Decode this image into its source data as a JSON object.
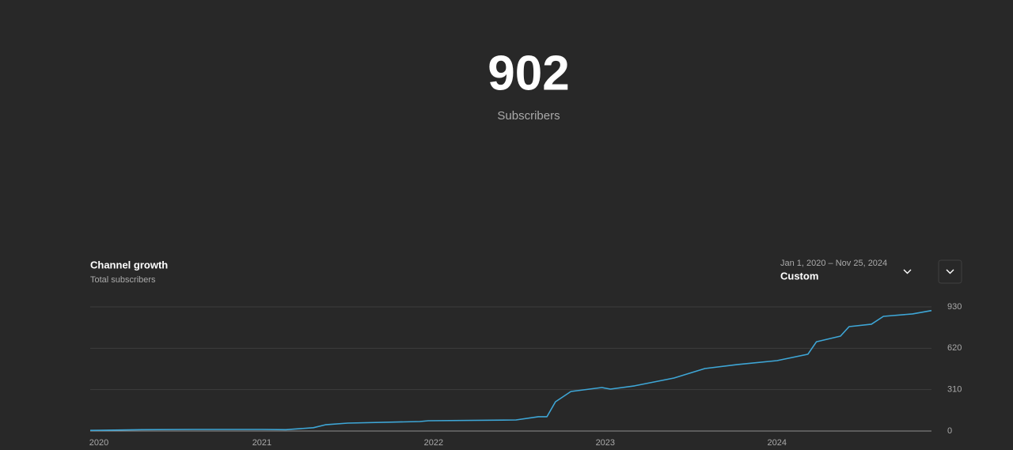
{
  "header": {
    "value": "902",
    "label": "Subscribers"
  },
  "card": {
    "title": "Channel growth",
    "subtitle": "Total subscribers",
    "date_range": "Jan 1, 2020 – Nov 25, 2024",
    "range_name": "Custom"
  },
  "chart_data": {
    "type": "line",
    "color": "#3ea6d6",
    "grid": true,
    "x": [
      2020.0,
      2020.3,
      2020.6,
      2021.0,
      2021.14,
      2021.3,
      2021.37,
      2021.5,
      2021.92,
      2021.97,
      2022.48,
      2022.61,
      2022.66,
      2022.71,
      2022.8,
      2022.98,
      2023.03,
      2023.17,
      2023.4,
      2023.58,
      2023.77,
      2024.0,
      2024.18,
      2024.23,
      2024.37,
      2024.42,
      2024.55,
      2024.62,
      2024.79,
      2024.9
    ],
    "values": [
      5,
      10,
      12,
      12,
      10,
      25,
      47,
      59,
      71,
      77,
      83,
      107,
      107,
      219,
      296,
      326,
      314,
      338,
      397,
      468,
      498,
      527,
      575,
      669,
      711,
      782,
      800,
      859,
      877,
      902
    ],
    "xlim": [
      2020,
      2024.9
    ],
    "xticks": [
      2020,
      2021,
      2022,
      2023,
      2024
    ],
    "ylim": [
      0,
      930
    ],
    "yticks": [
      0,
      310,
      620,
      930
    ]
  }
}
